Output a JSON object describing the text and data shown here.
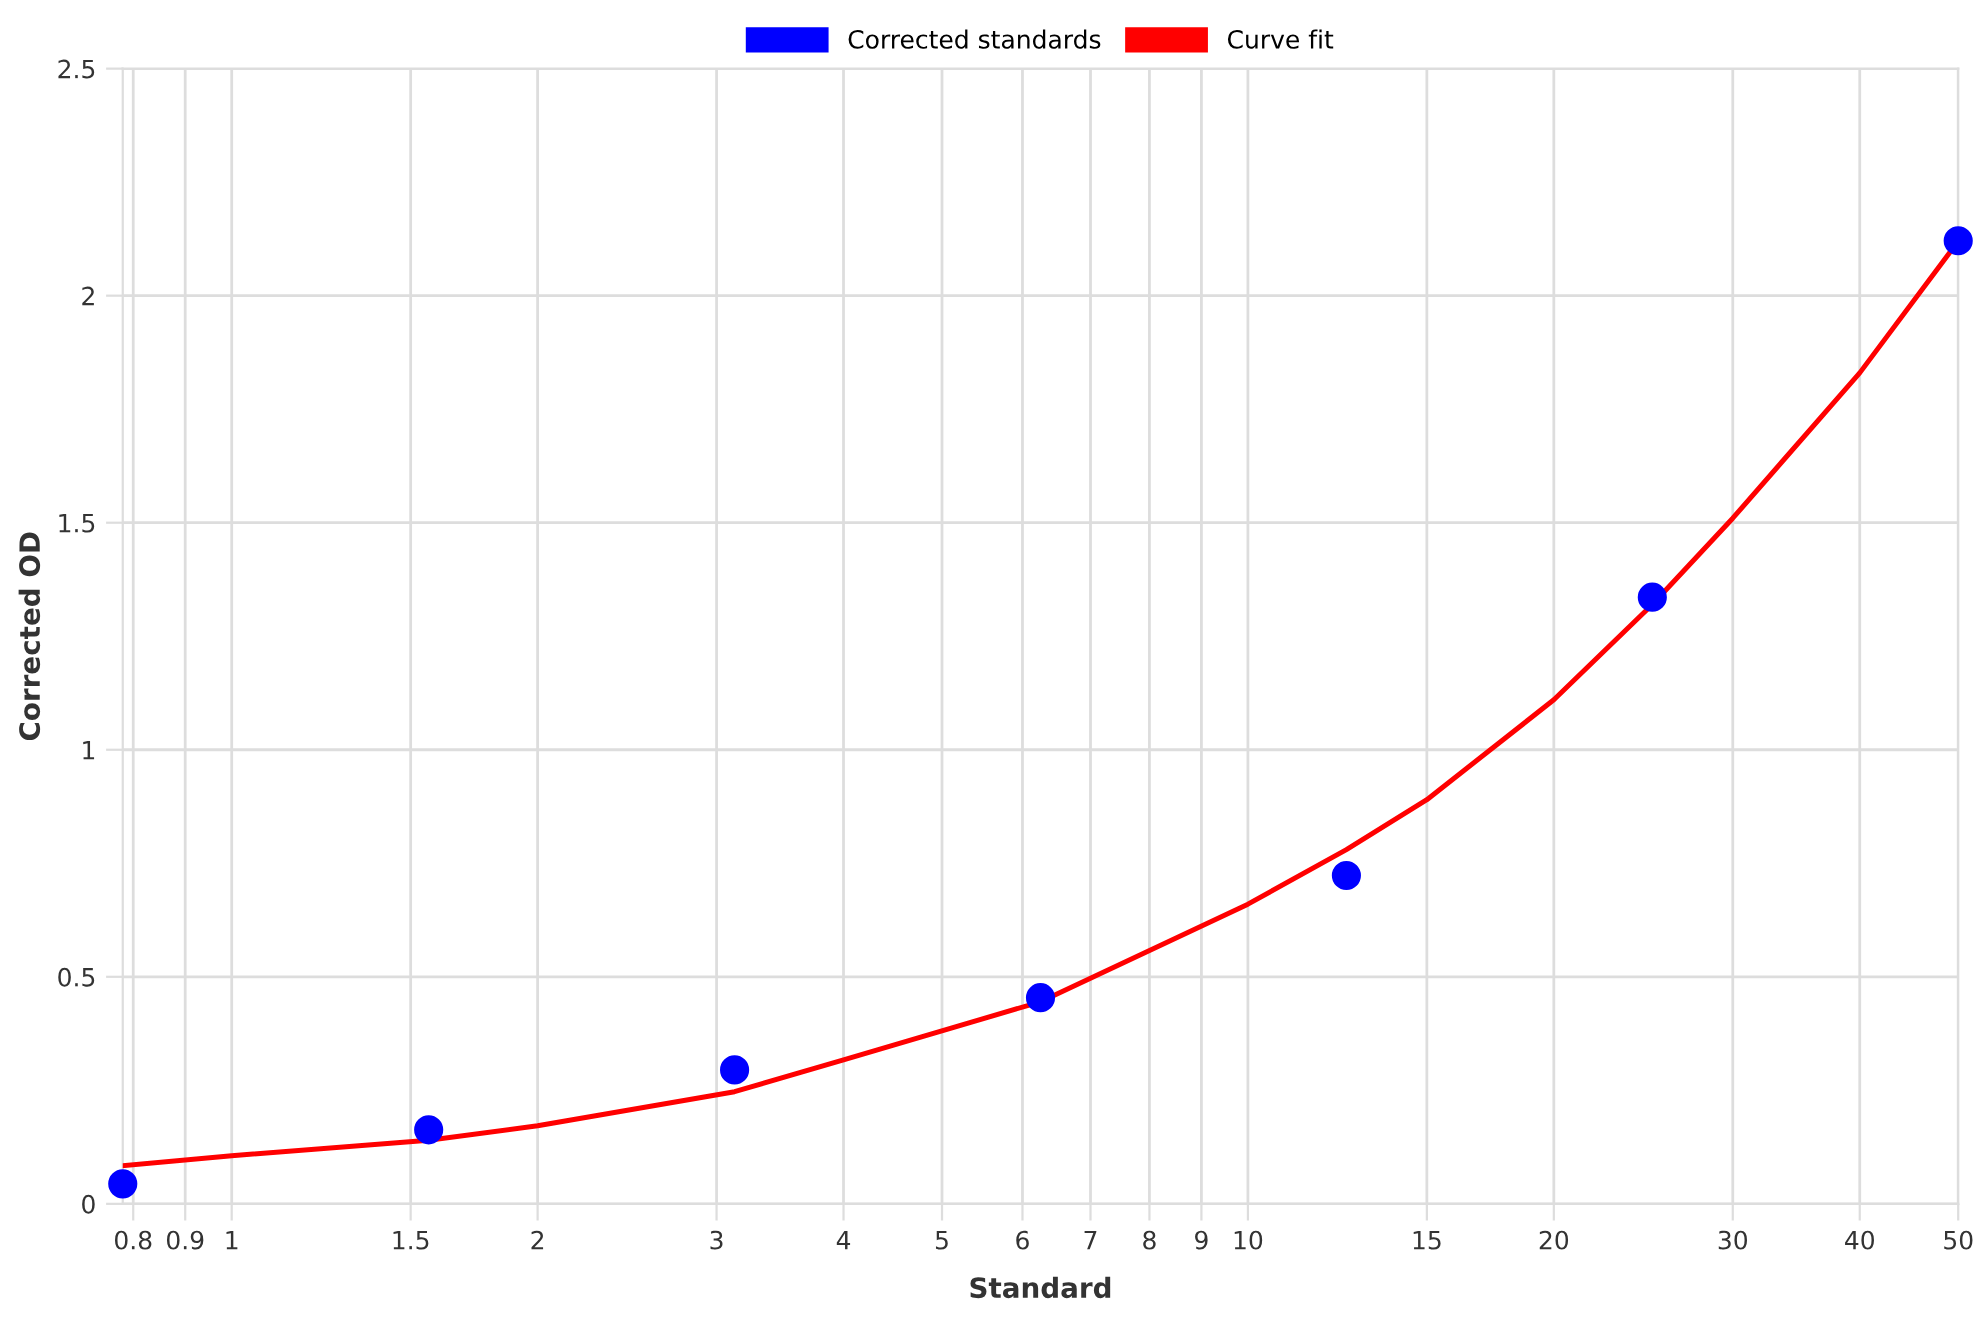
{
  "chart_data": {
    "type": "scatter",
    "xlabel": "Standard",
    "ylabel": "Corrected OD",
    "log": "x",
    "xlim": [
      0.78125,
      50
    ],
    "xticks": [
      0.8,
      0.9,
      1,
      1.5,
      2,
      3,
      4,
      5,
      6,
      7,
      8,
      9,
      10,
      15,
      20,
      30,
      40,
      50
    ],
    "ylim": [
      0,
      2.5
    ],
    "yticks": [
      0,
      0.5,
      1,
      1.5,
      2,
      2.5
    ],
    "grid": true,
    "legend": "top",
    "series": [
      {
        "name": "Corrected standards",
        "color": "#0000ff",
        "marker": "circle",
        "x": [
          0.78125,
          1.5625,
          3.125,
          6.25,
          12.5,
          25,
          50
        ],
        "values": [
          0.044,
          0.163,
          0.295,
          0.454,
          0.723,
          1.336,
          2.121
        ]
      },
      {
        "name": "Curve fit",
        "type": "line",
        "color": "#ff0000",
        "marker": "none",
        "line_style": "solid",
        "x": [
          0.78125,
          1,
          1.5625,
          2,
          3.125,
          4,
          6.25,
          10,
          12.5,
          15,
          20,
          25,
          30,
          40,
          50
        ],
        "values": [
          0.084,
          0.106,
          0.14,
          0.172,
          0.247,
          0.317,
          0.445,
          0.66,
          0.78,
          0.89,
          1.11,
          1.32,
          1.51,
          1.83,
          2.12
        ]
      }
    ]
  }
}
